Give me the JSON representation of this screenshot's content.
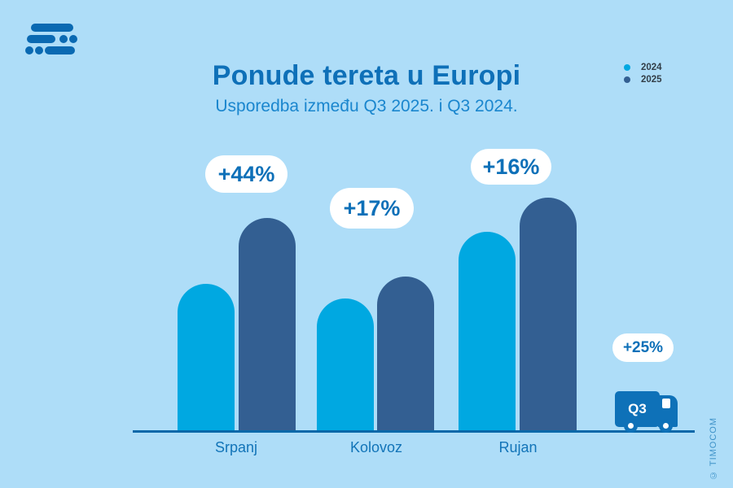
{
  "header": {
    "title": "Ponude tereta u Europi",
    "subtitle": "Usporedba između Q3 2025. i Q3 2024."
  },
  "legend": {
    "items": [
      {
        "label": "2024",
        "color": "#00A8E1"
      },
      {
        "label": "2025",
        "color": "#335F92"
      }
    ]
  },
  "chart_data": {
    "type": "bar",
    "title": "Ponude tereta u Europi",
    "subtitle": "Usporedba između Q3 2025. i Q3 2024.",
    "categories": [
      "Srpanj",
      "Kolovoz",
      "Rujan"
    ],
    "series": [
      {
        "name": "2024",
        "values": [
          181,
          163,
          245
        ]
      },
      {
        "name": "2025",
        "values": [
          262,
          190,
          287
        ]
      }
    ],
    "value_note": "no numeric axis shown; values are relative bar heights in pixels",
    "growth_labels": [
      {
        "category": "Srpanj",
        "text": "+44%"
      },
      {
        "category": "Kolovoz",
        "text": "+17%"
      },
      {
        "category": "Rujan",
        "text": "+16%"
      }
    ],
    "quarter_total": {
      "label": "Q3",
      "text": "+25%"
    },
    "legend_position": "top-right",
    "grid": false
  },
  "truck": {
    "label": "Q3"
  },
  "footer": {
    "copyright": "© TIMOCOM"
  },
  "icons": {
    "logo": "timocom-logo",
    "truck": "delivery-truck-icon"
  },
  "colors": {
    "background": "#AEDDF8",
    "bar_2024": "#00A8E1",
    "bar_2025": "#335F92",
    "title": "#0E70B8",
    "subtitle": "#1A86CE",
    "axis": "#0968A9",
    "pill_bg": "#FFFFFF",
    "pill_text": "#0E70B8",
    "truck": "#0E71B8"
  }
}
